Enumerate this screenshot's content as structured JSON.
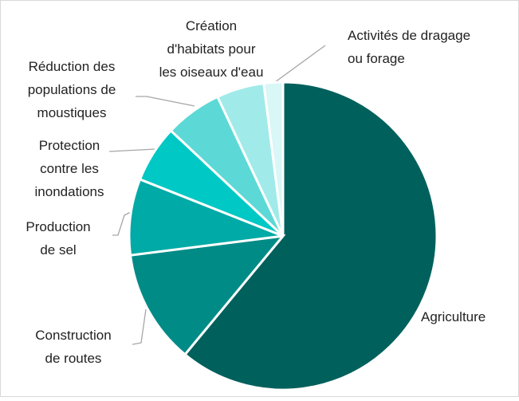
{
  "chart_data": {
    "type": "pie",
    "categories": [
      "Agriculture",
      "Construction\nde routes",
      "Production\nde sel",
      "Protection\ncontre les\ninondations",
      "Réduction des\npopulations de\nmoustiques",
      "Création\nd'habitats pour\nles oiseaux d'eau",
      "Activités de dragage\nou forage"
    ],
    "values": [
      61,
      12,
      8,
      6,
      6,
      5,
      2
    ],
    "colors": [
      "#00605c",
      "#008b87",
      "#00aaa6",
      "#00c8c4",
      "#5cd9d6",
      "#a0ebe9",
      "#d8f7f6"
    ]
  }
}
